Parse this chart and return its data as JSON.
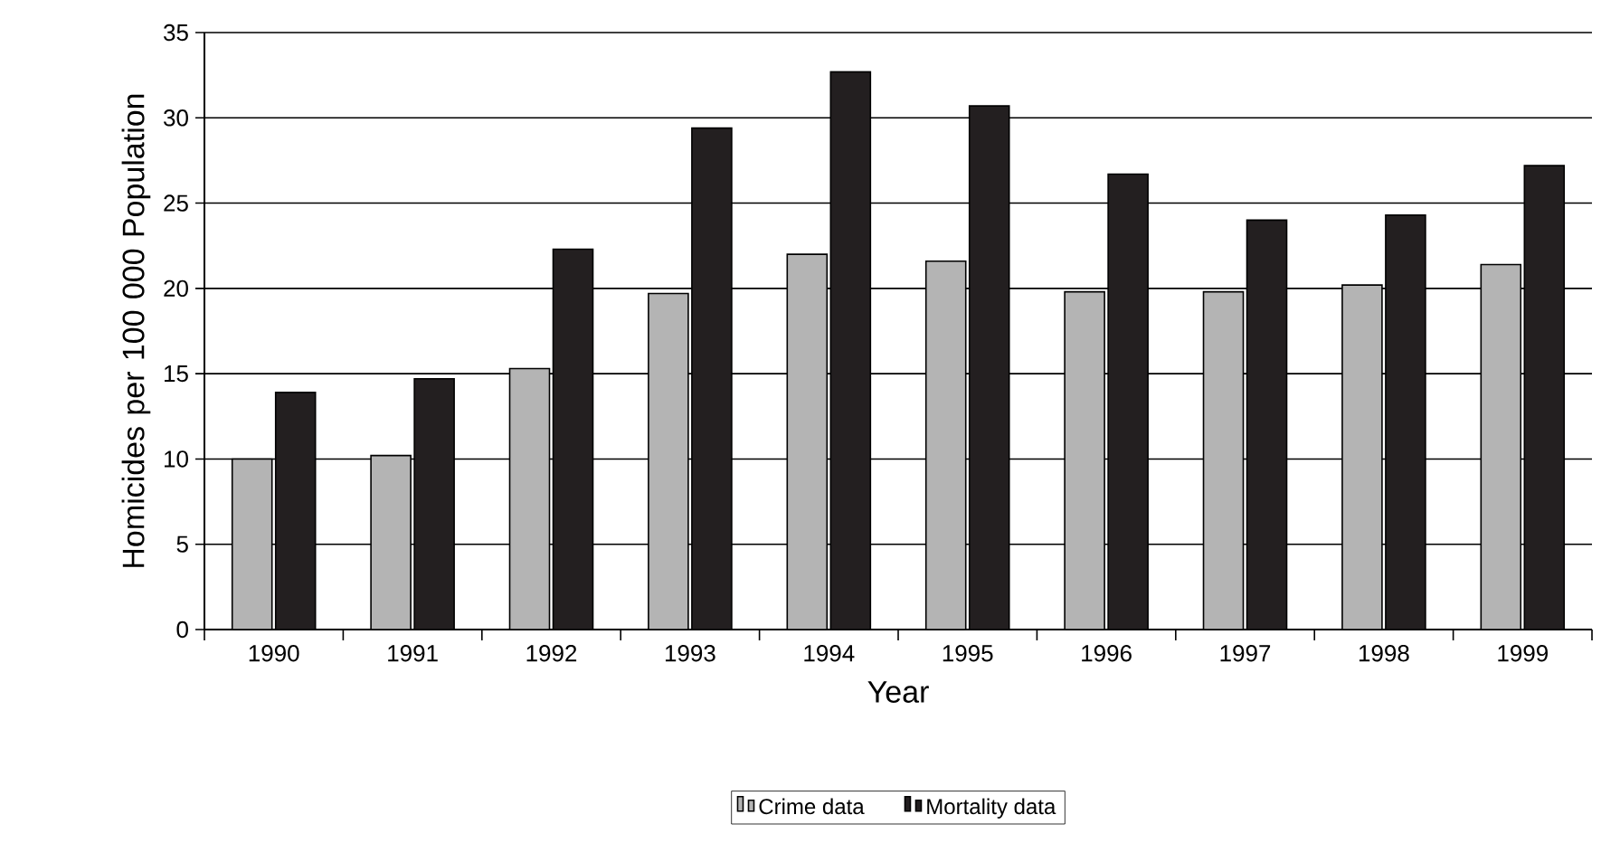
{
  "chart_data": {
    "type": "bar",
    "xlabel": "Year",
    "ylabel": "Homicides per 100 000 Population",
    "categories": [
      "1990",
      "1991",
      "1992",
      "1993",
      "1994",
      "1995",
      "1996",
      "1997",
      "1998",
      "1999"
    ],
    "series": [
      {
        "name": "Crime data",
        "color": "#b4b4b4",
        "values": [
          10.0,
          10.2,
          15.3,
          19.7,
          22.0,
          21.6,
          19.8,
          19.8,
          20.2,
          21.4
        ]
      },
      {
        "name": "Mortality data",
        "color": "#231f20",
        "values": [
          13.9,
          14.7,
          22.3,
          29.4,
          32.7,
          30.7,
          26.7,
          24.0,
          24.3,
          27.2
        ]
      }
    ],
    "ylim": [
      0,
      35
    ],
    "yticks": [
      0,
      5,
      10,
      15,
      20,
      25,
      30,
      35
    ],
    "grid": "y",
    "legend": "bottom"
  }
}
